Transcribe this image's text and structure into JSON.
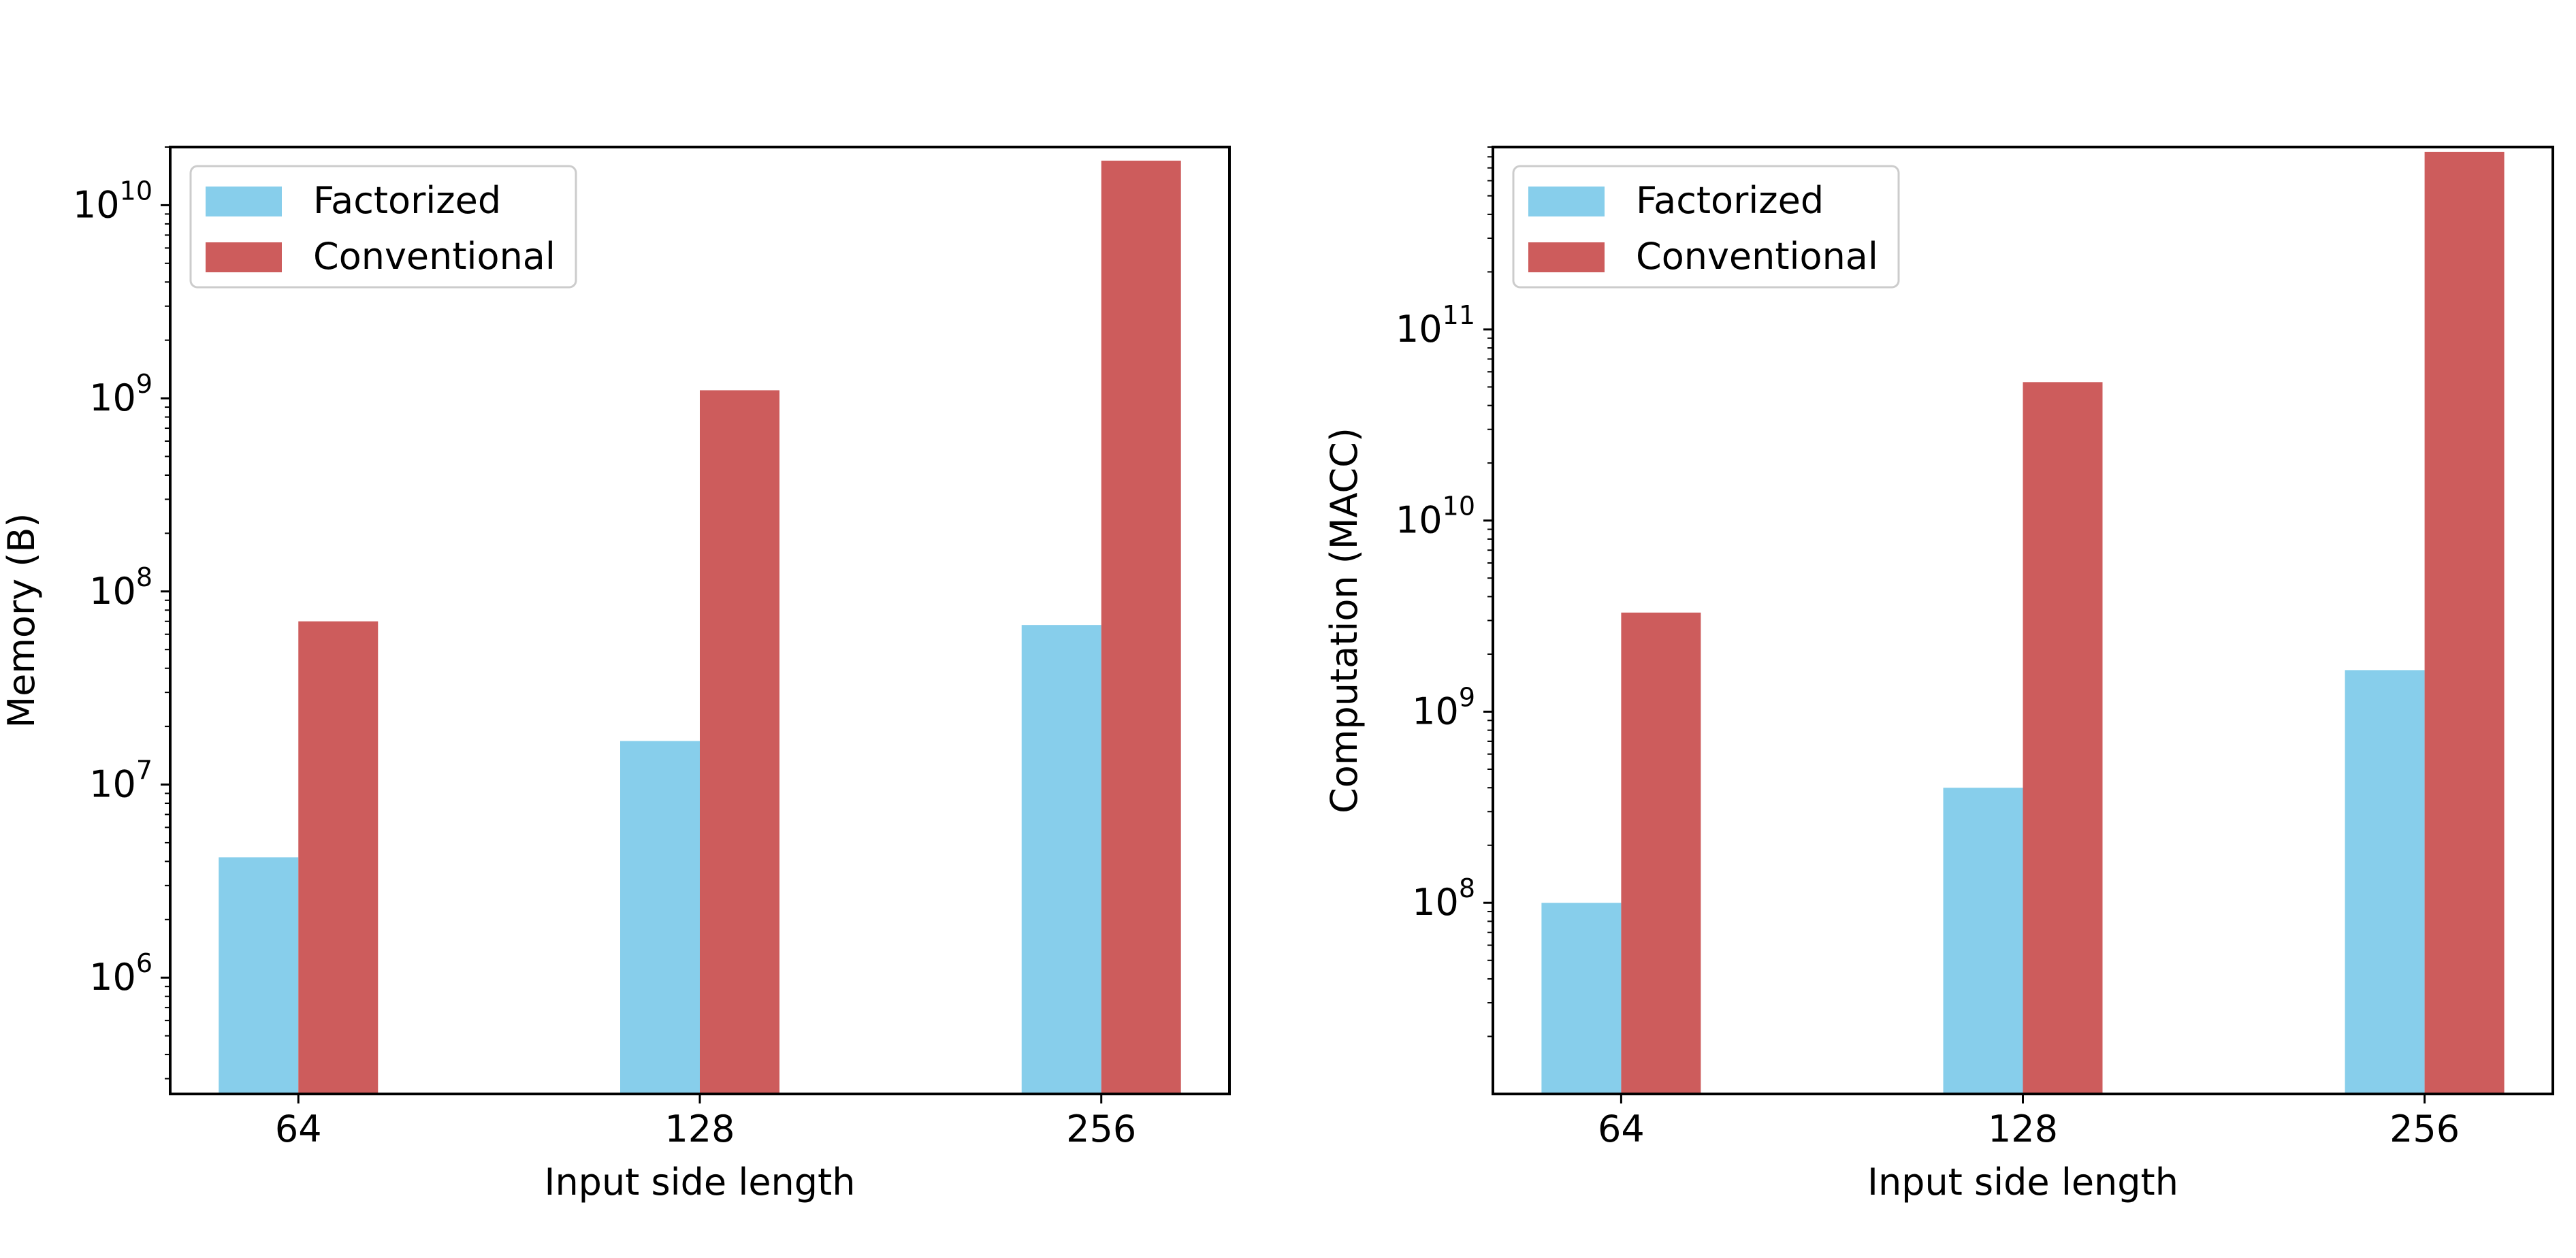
{
  "colors": {
    "factorized": "#87CEEB",
    "conventional": "#CD5C5C",
    "axis": "#000000",
    "legend_border": "#cccccc"
  },
  "chart_data": [
    {
      "type": "bar",
      "yscale": "log",
      "title": "",
      "xlabel": "Input side length",
      "ylabel": "Memory (B)",
      "categories": [
        "64",
        "128",
        "256"
      ],
      "ylim": [
        250000,
        20000000000
      ],
      "yticks": [
        {
          "value": 1000000,
          "base": "10",
          "exp": "6"
        },
        {
          "value": 10000000,
          "base": "10",
          "exp": "7"
        },
        {
          "value": 100000000,
          "base": "10",
          "exp": "8"
        },
        {
          "value": 1000000000,
          "base": "10",
          "exp": "9"
        },
        {
          "value": 10000000000,
          "base": "10",
          "exp": "10"
        }
      ],
      "series": [
        {
          "name": "Factorized",
          "color_key": "factorized",
          "values": [
            4200000,
            16800000,
            67000000
          ]
        },
        {
          "name": "Conventional",
          "color_key": "conventional",
          "values": [
            70000000,
            1100000000,
            17000000000
          ]
        }
      ],
      "legend": {
        "position": "upper-left",
        "entries": [
          "Factorized",
          "Conventional"
        ]
      }
    },
    {
      "type": "bar",
      "yscale": "log",
      "title": "",
      "xlabel": "Input side length",
      "ylabel": "Computation (MACC)",
      "categories": [
        "64",
        "128",
        "256"
      ],
      "ylim": [
        10000000,
        900000000000
      ],
      "yticks": [
        {
          "value": 100000000,
          "base": "10",
          "exp": "8"
        },
        {
          "value": 1000000000,
          "base": "10",
          "exp": "9"
        },
        {
          "value": 10000000000,
          "base": "10",
          "exp": "10"
        },
        {
          "value": 100000000000,
          "base": "10",
          "exp": "11"
        }
      ],
      "series": [
        {
          "name": "Factorized",
          "color_key": "factorized",
          "values": [
            100000000,
            400000000,
            1650000000
          ]
        },
        {
          "name": "Conventional",
          "color_key": "conventional",
          "values": [
            3300000000,
            53000000000,
            850000000000
          ]
        }
      ],
      "legend": {
        "position": "upper-left",
        "entries": [
          "Factorized",
          "Conventional"
        ]
      }
    }
  ]
}
